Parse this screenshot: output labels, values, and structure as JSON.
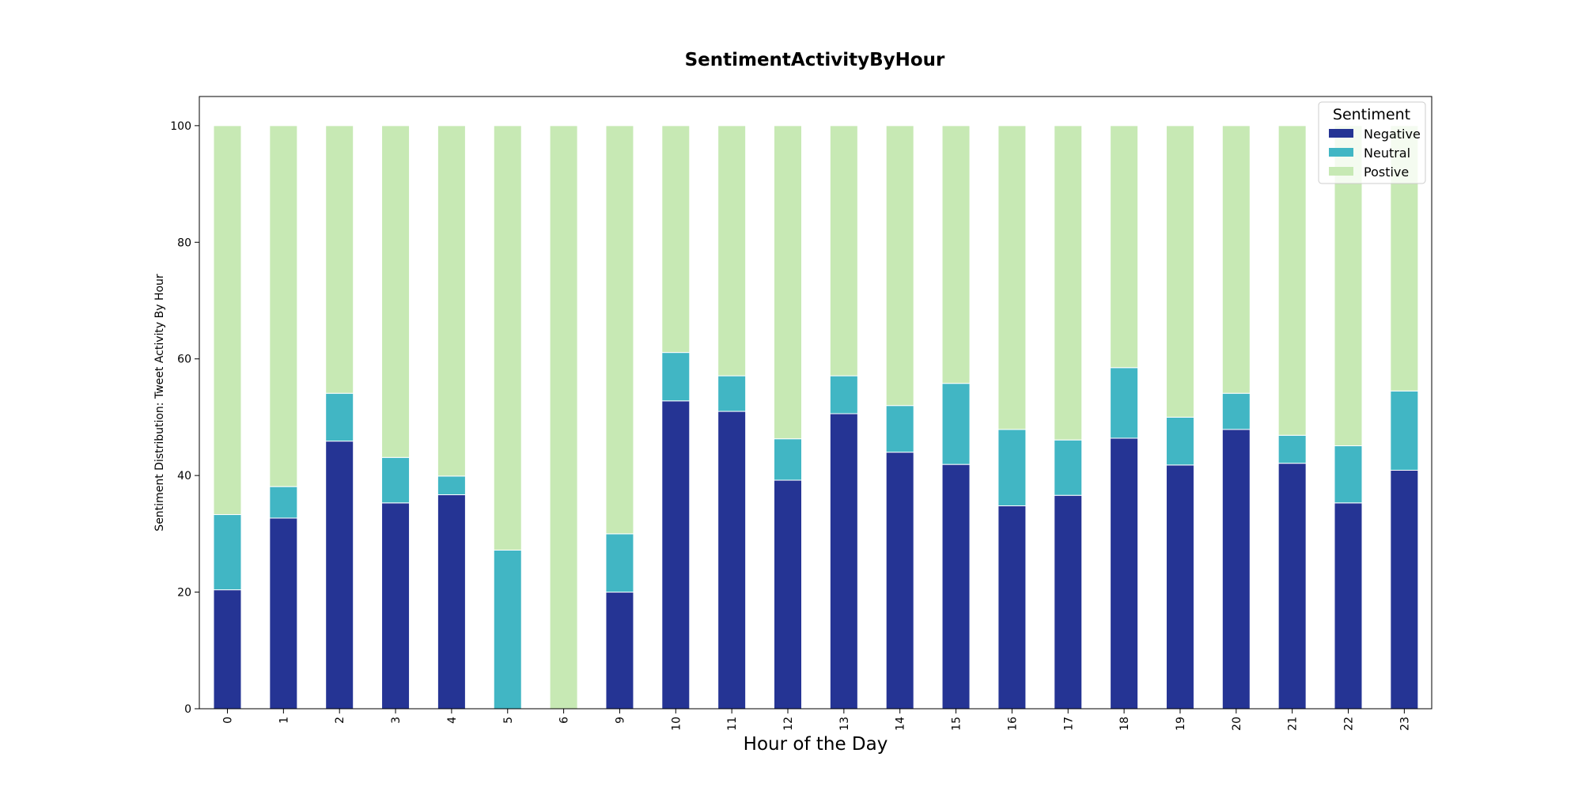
{
  "chart_data": {
    "type": "bar",
    "stacked": true,
    "title": "SentimentActivityByHour",
    "xlabel": "Hour of the Day",
    "ylabel": "Sentiment Distribution: Tweet Activity By Hour",
    "ylim": [
      0,
      105
    ],
    "yticks": [
      0,
      20,
      40,
      60,
      80,
      100
    ],
    "categories": [
      "0",
      "1",
      "2",
      "3",
      "4",
      "5",
      "6",
      "9",
      "10",
      "11",
      "12",
      "13",
      "14",
      "15",
      "16",
      "17",
      "18",
      "19",
      "20",
      "21",
      "22",
      "23"
    ],
    "series": [
      {
        "name": "Negative",
        "color": "#253494",
        "values": [
          20.4,
          32.7,
          45.9,
          35.3,
          36.7,
          0,
          0,
          20.0,
          52.8,
          51.0,
          39.2,
          50.6,
          44.0,
          41.9,
          34.8,
          36.6,
          46.4,
          41.8,
          47.9,
          42.1,
          35.3,
          40.9
        ]
      },
      {
        "name": "Neutral",
        "color": "#41b6c4",
        "values": [
          12.9,
          5.4,
          8.2,
          7.8,
          3.2,
          27.2,
          0,
          10.0,
          8.3,
          6.1,
          7.1,
          6.5,
          8.0,
          13.9,
          13.1,
          9.5,
          12.1,
          8.2,
          6.2,
          4.8,
          9.8,
          13.6
        ]
      },
      {
        "name": "Postive",
        "color": "#c7e9b4",
        "values": [
          66.7,
          61.9,
          45.9,
          56.9,
          60.1,
          72.8,
          100,
          70.0,
          38.9,
          42.9,
          53.7,
          42.9,
          48.0,
          44.2,
          52.1,
          53.9,
          41.5,
          50.0,
          45.9,
          53.1,
          54.9,
          45.5
        ]
      }
    ],
    "legend": {
      "title": "Sentiment",
      "placement": "top-right"
    },
    "grid": false
  }
}
